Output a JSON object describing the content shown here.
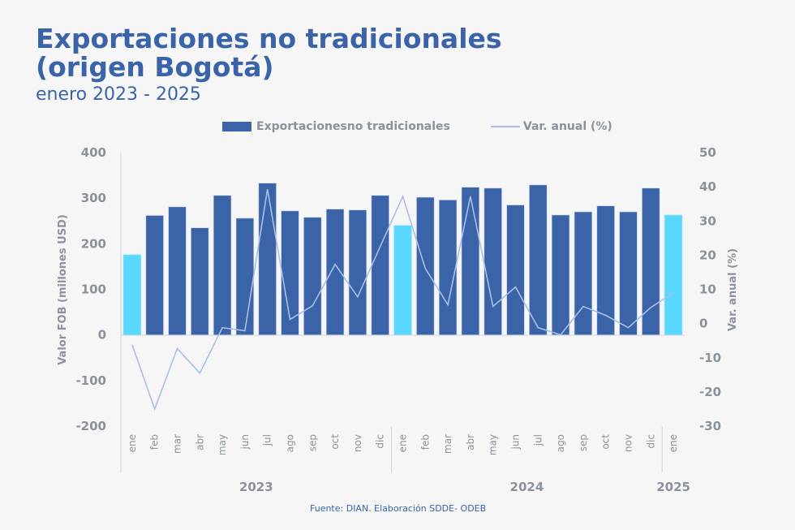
{
  "header": {
    "title_line1": "Exportaciones no tradicionales",
    "title_line2": "(origen Bogotá)",
    "subtitle": "enero 2023 - 2025"
  },
  "legend": {
    "bar_label": "Exportacionesno tradicionales",
    "line_label": "Var. anual (%)"
  },
  "footer": {
    "source": "Fuente: DIAN. Elaboración SDDE- ODEB"
  },
  "colors": {
    "bar": "#3a63a8",
    "bar_highlight": "#5bd8ff",
    "line": "#a9bfe6",
    "text": "#8a929c",
    "title": "#3a63a8"
  },
  "chart_data": {
    "type": "bar",
    "title": "Exportaciones no tradicionales (origen Bogotá)",
    "subtitle": "enero 2023 - 2025",
    "xlabel": "",
    "ylabel": "Valor FOB (millones USD)",
    "y2label": "Var. anual (%)",
    "ylim": [
      -200,
      400
    ],
    "y2lim": [
      -30,
      50
    ],
    "yticks": [
      "400",
      "300",
      "200",
      "100",
      "0",
      "-100",
      "-200"
    ],
    "yticks_values": [
      400,
      300,
      200,
      100,
      0,
      -100,
      -200
    ],
    "y2ticks": [
      "50",
      "40",
      "30",
      "20",
      "10",
      "0",
      "-10",
      "-20",
      "-30"
    ],
    "y2ticks_values": [
      50,
      40,
      30,
      20,
      10,
      0,
      -10,
      -20,
      -30
    ],
    "grid": false,
    "legend_position": "top",
    "categories": [
      "ene",
      "feb",
      "mar",
      "abr",
      "may",
      "jun",
      "jul",
      "ago",
      "sep",
      "oct",
      "nov",
      "dic",
      "ene",
      "feb",
      "mar",
      "abr",
      "may",
      "jun",
      "jul",
      "ago",
      "sep",
      "oct",
      "nov",
      "dic",
      "ene"
    ],
    "years": [
      {
        "label": "2023",
        "start": 0,
        "end": 11
      },
      {
        "label": "2024",
        "start": 12,
        "end": 23
      },
      {
        "label": "2025",
        "start": 24,
        "end": 24
      }
    ],
    "highlight_indices": [
      0,
      12,
      24
    ],
    "series": [
      {
        "name": "Exportacionesno tradicionales",
        "type": "bar",
        "axis": "left",
        "values": [
          176,
          262,
          281,
          235,
          306,
          256,
          333,
          272,
          258,
          276,
          274,
          306,
          240,
          302,
          296,
          324,
          322,
          285,
          329,
          263,
          270,
          283,
          270,
          322,
          263
        ]
      },
      {
        "name": "Var. anual (%)",
        "type": "line",
        "axis": "right",
        "values": [
          -6.2,
          -25.0,
          -7.3,
          -14.5,
          -1.2,
          -2.1,
          39.3,
          1.2,
          5.2,
          17.3,
          7.8,
          22.5,
          37.2,
          16.1,
          5.5,
          37.2,
          5.0,
          10.7,
          -1.2,
          -3.3,
          5.0,
          2.4,
          -1.2,
          4.7,
          9.0
        ]
      }
    ]
  }
}
